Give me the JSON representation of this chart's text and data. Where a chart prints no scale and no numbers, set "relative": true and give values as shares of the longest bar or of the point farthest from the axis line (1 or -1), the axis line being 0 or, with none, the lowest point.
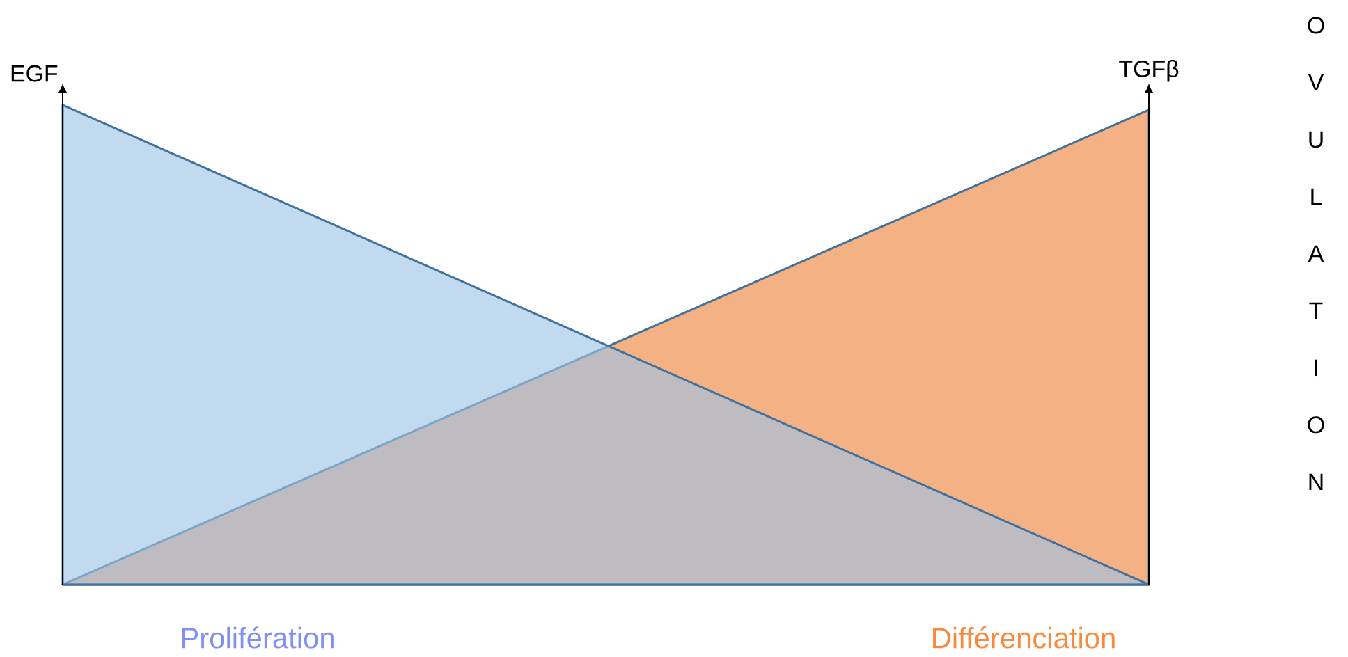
{
  "chart_data": {
    "type": "area",
    "relative": true,
    "categories": [
      null,
      null
    ],
    "series": [
      {
        "name": "EGF",
        "color": "#9dc3e6",
        "values": [
          1,
          0
        ]
      },
      {
        "name": "TGFβ",
        "color": "#f4b183",
        "values": [
          0,
          0.99
        ]
      }
    ],
    "annotations": [
      "Prolifération",
      "Différenciation",
      "OVULATION"
    ]
  }
}
